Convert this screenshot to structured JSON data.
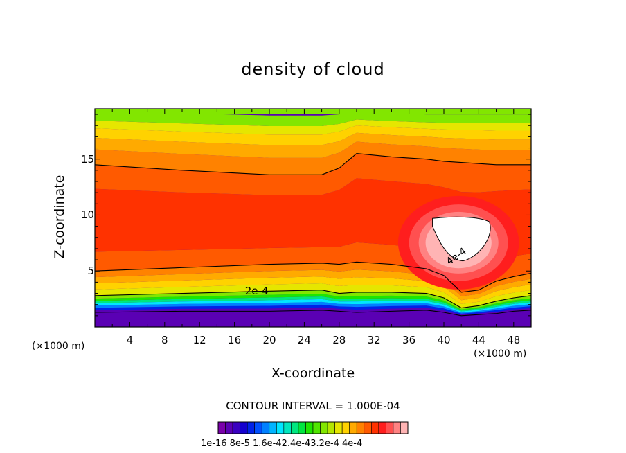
{
  "chart_data": {
    "type": "heatmap",
    "title": "density of cloud",
    "xlabel": "X-coordinate",
    "ylabel": "Z-coordinate",
    "x_unit": "(×1000 m)",
    "x_ticks": [
      "4",
      "8",
      "12",
      "16",
      "20",
      "24",
      "28",
      "32",
      "36",
      "40",
      "44",
      "48"
    ],
    "y_ticks": [
      "5",
      "10",
      "15"
    ],
    "xlim": [
      0,
      50
    ],
    "ylim": [
      0,
      19.5
    ],
    "contour_interval": "CONTOUR INTERVAL = 1.000E-04",
    "contour_labels": [
      "2e-4",
      "4e-4"
    ],
    "colorbar": {
      "labels_text": "1e-16 8e-5 1.6e-42.4e-43.2e-4 4e-4",
      "range": [
        1e-16,
        0.00042
      ],
      "colors": [
        "#7a00aa",
        "#5a00b4",
        "#3a00c0",
        "#1400cf",
        "#0022e8",
        "#0050ff",
        "#0080ff",
        "#00b4ff",
        "#00e6ff",
        "#00e6bf",
        "#00e680",
        "#00e640",
        "#1ee600",
        "#50e600",
        "#82e600",
        "#b4e600",
        "#e6e600",
        "#ffd200",
        "#ffaa00",
        "#ff8200",
        "#ff5a00",
        "#ff3200",
        "#ff1e1e",
        "#ff5050",
        "#ff8282",
        "#ffb4b4"
      ]
    },
    "layers_z_top": {
      "x": [
        0,
        10,
        20,
        26,
        28,
        30,
        34,
        38,
        40,
        42,
        44,
        46,
        48,
        50
      ],
      "cloud_base": [
        1.3,
        1.4,
        1.4,
        1.5,
        1.4,
        1.3,
        1.4,
        1.5,
        1.3,
        1.0,
        1.1,
        1.2,
        1.4,
        1.5
      ],
      "contour_2e-4": [
        2.8,
        3.0,
        3.2,
        3.3,
        3.0,
        3.1,
        3.1,
        3.0,
        2.6,
        1.7,
        1.9,
        2.3,
        2.6,
        2.8
      ],
      "contour_lower": [
        5.0,
        5.3,
        5.6,
        5.7,
        5.6,
        5.8,
        5.6,
        5.2,
        4.6,
        3.1,
        3.3,
        4.1,
        4.5,
        4.8
      ],
      "contour_upper": [
        14.5,
        14.0,
        13.6,
        13.6,
        14.2,
        15.5,
        15.2,
        15.0,
        14.8,
        14.7,
        14.6,
        14.5,
        14.5,
        14.5
      ],
      "cloud_top": [
        19.3,
        19.1,
        18.9,
        18.9,
        19.0,
        19.2,
        19.1,
        19.0,
        19.0,
        19.0,
        19.0,
        19.0,
        19.0,
        19.0
      ]
    },
    "max_region": {
      "x_range": [
        38.5,
        45.5
      ],
      "z_range": [
        6.0,
        9.8
      ],
      "value_label": "4e-4"
    }
  }
}
